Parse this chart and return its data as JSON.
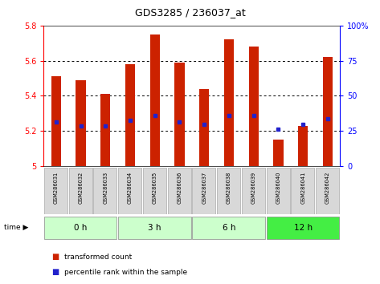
{
  "title": "GDS3285 / 236037_at",
  "samples": [
    "GSM286031",
    "GSM286032",
    "GSM286033",
    "GSM286034",
    "GSM286035",
    "GSM286036",
    "GSM286037",
    "GSM286038",
    "GSM286039",
    "GSM286040",
    "GSM286041",
    "GSM286042"
  ],
  "bar_tops": [
    5.51,
    5.49,
    5.41,
    5.58,
    5.75,
    5.59,
    5.44,
    5.72,
    5.68,
    5.15,
    5.23,
    5.62
  ],
  "percentile_vals": [
    5.25,
    5.23,
    5.23,
    5.26,
    5.29,
    5.25,
    5.24,
    5.29,
    5.29,
    5.21,
    5.24,
    5.27
  ],
  "bar_bottom": 5.0,
  "ylim": [
    5.0,
    5.8
  ],
  "yticks": [
    5.0,
    5.2,
    5.4,
    5.6,
    5.8
  ],
  "ytick_labels": [
    "5",
    "5.2",
    "5.4",
    "5.6",
    "5.8"
  ],
  "right_ylim": [
    0,
    100
  ],
  "right_yticks": [
    0,
    25,
    50,
    75,
    100
  ],
  "right_ytick_labels": [
    "0",
    "25",
    "50",
    "75",
    "100%"
  ],
  "bar_color": "#cc2200",
  "percentile_color": "#2222cc",
  "bar_width": 0.4,
  "groups_info": [
    [
      0,
      2,
      "0 h"
    ],
    [
      3,
      5,
      "3 h"
    ],
    [
      6,
      8,
      "6 h"
    ],
    [
      9,
      11,
      "12 h"
    ]
  ],
  "group_colors_light": [
    "#ccffcc",
    "#ccffcc",
    "#ccffcc",
    "#44ee44"
  ],
  "time_label": "time ▶",
  "legend_bar_label": "transformed count",
  "legend_pct_label": "percentile rank within the sample",
  "sample_box_color": "#d8d8d8",
  "sample_box_edge": "#aaaaaa"
}
